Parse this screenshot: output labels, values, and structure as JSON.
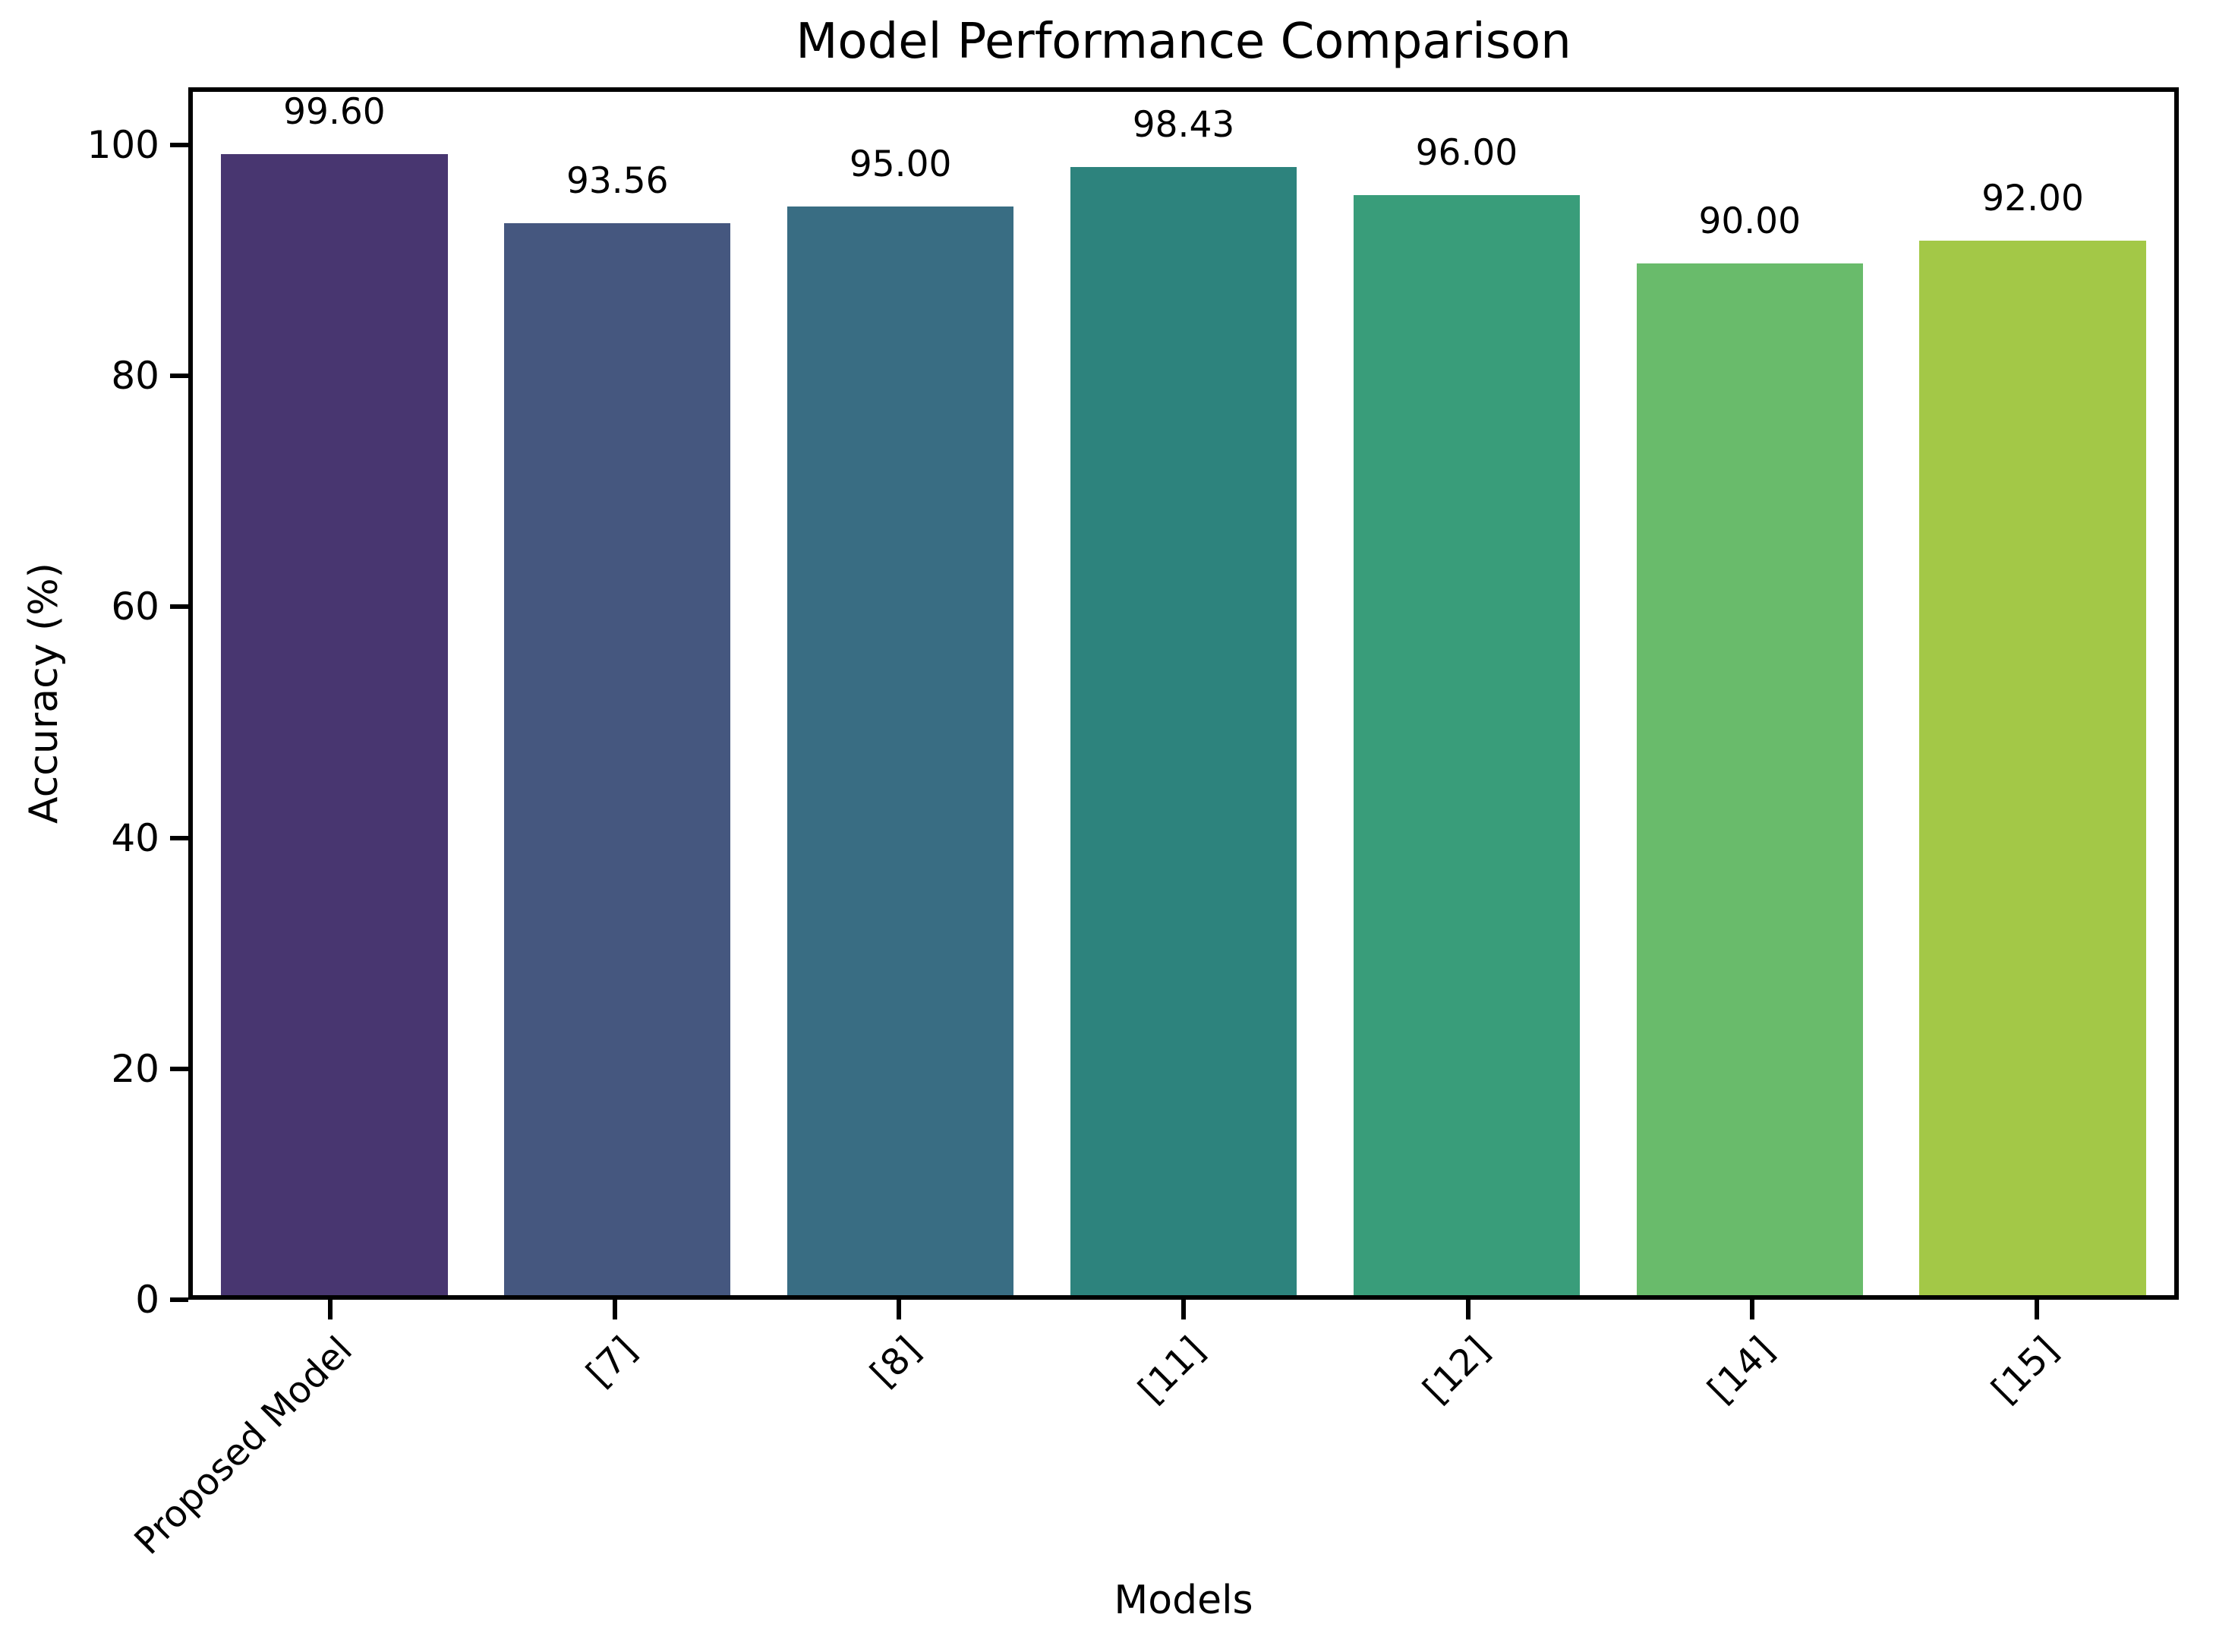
{
  "chart_data": {
    "type": "bar",
    "title": "Model Performance Comparison",
    "xlabel": "Models",
    "ylabel": "Accuracy (%)",
    "categories": [
      "Proposed Model",
      "[7]",
      "[8]",
      "[11]",
      "[12]",
      "[14]",
      "[15]"
    ],
    "values": [
      99.6,
      93.56,
      95.0,
      98.43,
      96.0,
      90.0,
      92.0
    ],
    "bar_labels": [
      "99.60",
      "93.56",
      "95.00",
      "98.43",
      "96.00",
      "90.00",
      "92.00"
    ],
    "colors": [
      "#483670",
      "#45577f",
      "#396d83",
      "#2d837d",
      "#399d7a",
      "#69bb6b",
      "#a3c847"
    ],
    "ylim": [
      0,
      105
    ],
    "yticks": [
      0,
      20,
      40,
      60,
      80,
      100
    ],
    "grid": false,
    "legend": null,
    "x_tick_rotation": 45,
    "bar_width_fraction": 0.8
  }
}
